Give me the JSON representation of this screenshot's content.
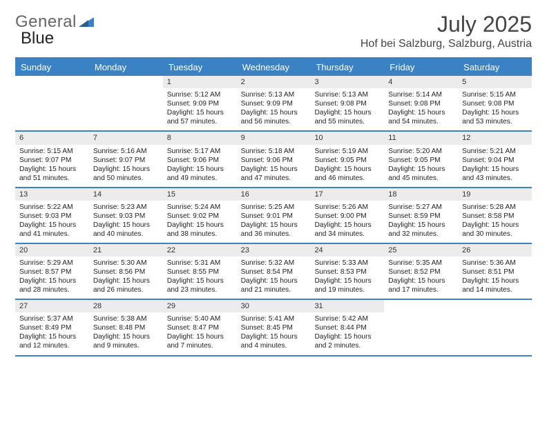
{
  "brand": {
    "part1": "General",
    "part2": "Blue"
  },
  "title": "July 2025",
  "location": "Hof bei Salzburg, Salzburg, Austria",
  "colors": {
    "accent": "#3b82c4",
    "header_bg": "#3b82c4",
    "header_text": "#ffffff",
    "daynum_bg": "#ececec",
    "text": "#222222",
    "title_text": "#444444"
  },
  "day_headers": [
    "Sunday",
    "Monday",
    "Tuesday",
    "Wednesday",
    "Thursday",
    "Friday",
    "Saturday"
  ],
  "weeks": [
    [
      {
        "empty": true
      },
      {
        "empty": true
      },
      {
        "num": "1",
        "sunrise": "Sunrise: 5:12 AM",
        "sunset": "Sunset: 9:09 PM",
        "daylight": "Daylight: 15 hours and 57 minutes."
      },
      {
        "num": "2",
        "sunrise": "Sunrise: 5:13 AM",
        "sunset": "Sunset: 9:09 PM",
        "daylight": "Daylight: 15 hours and 56 minutes."
      },
      {
        "num": "3",
        "sunrise": "Sunrise: 5:13 AM",
        "sunset": "Sunset: 9:08 PM",
        "daylight": "Daylight: 15 hours and 55 minutes."
      },
      {
        "num": "4",
        "sunrise": "Sunrise: 5:14 AM",
        "sunset": "Sunset: 9:08 PM",
        "daylight": "Daylight: 15 hours and 54 minutes."
      },
      {
        "num": "5",
        "sunrise": "Sunrise: 5:15 AM",
        "sunset": "Sunset: 9:08 PM",
        "daylight": "Daylight: 15 hours and 53 minutes."
      }
    ],
    [
      {
        "num": "6",
        "sunrise": "Sunrise: 5:15 AM",
        "sunset": "Sunset: 9:07 PM",
        "daylight": "Daylight: 15 hours and 51 minutes."
      },
      {
        "num": "7",
        "sunrise": "Sunrise: 5:16 AM",
        "sunset": "Sunset: 9:07 PM",
        "daylight": "Daylight: 15 hours and 50 minutes."
      },
      {
        "num": "8",
        "sunrise": "Sunrise: 5:17 AM",
        "sunset": "Sunset: 9:06 PM",
        "daylight": "Daylight: 15 hours and 49 minutes."
      },
      {
        "num": "9",
        "sunrise": "Sunrise: 5:18 AM",
        "sunset": "Sunset: 9:06 PM",
        "daylight": "Daylight: 15 hours and 47 minutes."
      },
      {
        "num": "10",
        "sunrise": "Sunrise: 5:19 AM",
        "sunset": "Sunset: 9:05 PM",
        "daylight": "Daylight: 15 hours and 46 minutes."
      },
      {
        "num": "11",
        "sunrise": "Sunrise: 5:20 AM",
        "sunset": "Sunset: 9:05 PM",
        "daylight": "Daylight: 15 hours and 45 minutes."
      },
      {
        "num": "12",
        "sunrise": "Sunrise: 5:21 AM",
        "sunset": "Sunset: 9:04 PM",
        "daylight": "Daylight: 15 hours and 43 minutes."
      }
    ],
    [
      {
        "num": "13",
        "sunrise": "Sunrise: 5:22 AM",
        "sunset": "Sunset: 9:03 PM",
        "daylight": "Daylight: 15 hours and 41 minutes."
      },
      {
        "num": "14",
        "sunrise": "Sunrise: 5:23 AM",
        "sunset": "Sunset: 9:03 PM",
        "daylight": "Daylight: 15 hours and 40 minutes."
      },
      {
        "num": "15",
        "sunrise": "Sunrise: 5:24 AM",
        "sunset": "Sunset: 9:02 PM",
        "daylight": "Daylight: 15 hours and 38 minutes."
      },
      {
        "num": "16",
        "sunrise": "Sunrise: 5:25 AM",
        "sunset": "Sunset: 9:01 PM",
        "daylight": "Daylight: 15 hours and 36 minutes."
      },
      {
        "num": "17",
        "sunrise": "Sunrise: 5:26 AM",
        "sunset": "Sunset: 9:00 PM",
        "daylight": "Daylight: 15 hours and 34 minutes."
      },
      {
        "num": "18",
        "sunrise": "Sunrise: 5:27 AM",
        "sunset": "Sunset: 8:59 PM",
        "daylight": "Daylight: 15 hours and 32 minutes."
      },
      {
        "num": "19",
        "sunrise": "Sunrise: 5:28 AM",
        "sunset": "Sunset: 8:58 PM",
        "daylight": "Daylight: 15 hours and 30 minutes."
      }
    ],
    [
      {
        "num": "20",
        "sunrise": "Sunrise: 5:29 AM",
        "sunset": "Sunset: 8:57 PM",
        "daylight": "Daylight: 15 hours and 28 minutes."
      },
      {
        "num": "21",
        "sunrise": "Sunrise: 5:30 AM",
        "sunset": "Sunset: 8:56 PM",
        "daylight": "Daylight: 15 hours and 26 minutes."
      },
      {
        "num": "22",
        "sunrise": "Sunrise: 5:31 AM",
        "sunset": "Sunset: 8:55 PM",
        "daylight": "Daylight: 15 hours and 23 minutes."
      },
      {
        "num": "23",
        "sunrise": "Sunrise: 5:32 AM",
        "sunset": "Sunset: 8:54 PM",
        "daylight": "Daylight: 15 hours and 21 minutes."
      },
      {
        "num": "24",
        "sunrise": "Sunrise: 5:33 AM",
        "sunset": "Sunset: 8:53 PM",
        "daylight": "Daylight: 15 hours and 19 minutes."
      },
      {
        "num": "25",
        "sunrise": "Sunrise: 5:35 AM",
        "sunset": "Sunset: 8:52 PM",
        "daylight": "Daylight: 15 hours and 17 minutes."
      },
      {
        "num": "26",
        "sunrise": "Sunrise: 5:36 AM",
        "sunset": "Sunset: 8:51 PM",
        "daylight": "Daylight: 15 hours and 14 minutes."
      }
    ],
    [
      {
        "num": "27",
        "sunrise": "Sunrise: 5:37 AM",
        "sunset": "Sunset: 8:49 PM",
        "daylight": "Daylight: 15 hours and 12 minutes."
      },
      {
        "num": "28",
        "sunrise": "Sunrise: 5:38 AM",
        "sunset": "Sunset: 8:48 PM",
        "daylight": "Daylight: 15 hours and 9 minutes."
      },
      {
        "num": "29",
        "sunrise": "Sunrise: 5:40 AM",
        "sunset": "Sunset: 8:47 PM",
        "daylight": "Daylight: 15 hours and 7 minutes."
      },
      {
        "num": "30",
        "sunrise": "Sunrise: 5:41 AM",
        "sunset": "Sunset: 8:45 PM",
        "daylight": "Daylight: 15 hours and 4 minutes."
      },
      {
        "num": "31",
        "sunrise": "Sunrise: 5:42 AM",
        "sunset": "Sunset: 8:44 PM",
        "daylight": "Daylight: 15 hours and 2 minutes."
      },
      {
        "empty": true
      },
      {
        "empty": true
      }
    ]
  ]
}
